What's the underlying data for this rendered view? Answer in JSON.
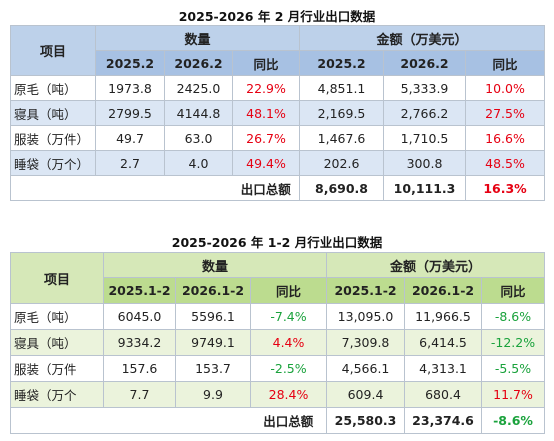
{
  "tables": [
    {
      "title": "2025-2026 年 2 月行业出口数据",
      "item_header": "项目",
      "qty_header": "数量",
      "amt_header": "金额（万美元）",
      "sub_headers": [
        "2025.2",
        "2026.2",
        "同比",
        "2025.2",
        "2026.2",
        "同比"
      ],
      "rows": [
        {
          "name": "原毛（吨）",
          "q1": "1973.8",
          "q2": "2425.0",
          "qy": "22.9%",
          "qy_sign": "pos",
          "a1": "4,851.1",
          "a2": "5,333.9",
          "ay": "10.0%",
          "ay_sign": "pos"
        },
        {
          "name": "寝具（吨）",
          "q1": "2799.5",
          "q2": "4144.8",
          "qy": "48.1%",
          "qy_sign": "pos",
          "a1": "2,169.5",
          "a2": "2,766.2",
          "ay": "27.5%",
          "ay_sign": "pos"
        },
        {
          "name": "服装（万件）",
          "q1": "49.7",
          "q2": "63.0",
          "qy": "26.7%",
          "qy_sign": "pos",
          "a1": "1,467.6",
          "a2": "1,710.5",
          "ay": "16.6%",
          "ay_sign": "pos"
        },
        {
          "name": "睡袋（万个）",
          "q1": "2.7",
          "q2": "4.0",
          "qy": "49.4%",
          "qy_sign": "pos",
          "a1": "202.6",
          "a2": "300.8",
          "ay": "48.5%",
          "ay_sign": "pos"
        }
      ],
      "total_label": "出口总额",
      "total_a1": "8,690.8",
      "total_a2": "10,111.3",
      "total_ay": "16.3%",
      "total_ay_sign": "pos"
    },
    {
      "title": "2025-2026 年 1-2 月行业出口数据",
      "item_header": "项目",
      "qty_header": "数量",
      "amt_header": "金额（万美元）",
      "sub_headers": [
        "2025.1-2",
        "2026.1-2",
        "同比",
        "2025.1-2",
        "2026.1-2",
        "同比"
      ],
      "rows": [
        {
          "name": "原毛（吨）",
          "q1": "6045.0",
          "q2": "5596.1",
          "qy": "-7.4%",
          "qy_sign": "neg",
          "a1": "13,095.0",
          "a2": "11,966.5",
          "ay": "-8.6%",
          "ay_sign": "neg"
        },
        {
          "name": "寝具（吨）",
          "q1": "9334.2",
          "q2": "9749.1",
          "qy": "4.4%",
          "qy_sign": "pos",
          "a1": "7,309.8",
          "a2": "6,414.5",
          "ay": "-12.2%",
          "ay_sign": "neg"
        },
        {
          "name": "服装（万件",
          "q1": "157.6",
          "q2": "153.7",
          "qy": "-2.5%",
          "qy_sign": "neg",
          "a1": "4,566.1",
          "a2": "4,313.1",
          "ay": "-5.5%",
          "ay_sign": "neg"
        },
        {
          "name": "睡袋（万个",
          "q1": "7.7",
          "q2": "9.9",
          "qy": "28.4%",
          "qy_sign": "pos",
          "a1": "609.4",
          "a2": "680.4",
          "ay": "11.7%",
          "ay_sign": "pos"
        }
      ],
      "total_label": "出口总额",
      "total_a1": "25,580.3",
      "total_a2": "23,374.6",
      "total_ay": "-8.6%",
      "total_ay_sign": "neg"
    }
  ]
}
